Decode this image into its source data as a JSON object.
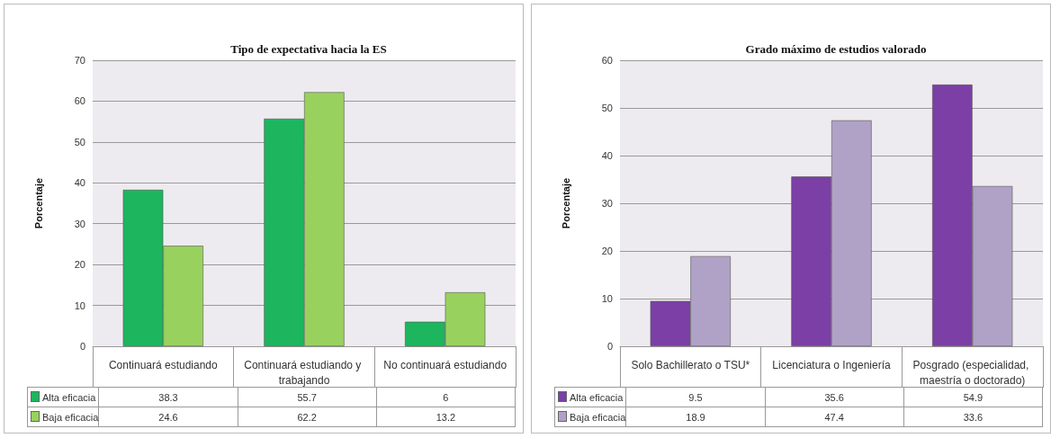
{
  "chart_data": [
    {
      "type": "bar",
      "title": "Tipo de expectativa hacia la ES",
      "ylabel": "Porcentaje",
      "categories": [
        "Continuará estudiando",
        "Continuará estudiando y trabajando",
        "No continuará estudiando"
      ],
      "series": [
        {
          "name": "Alta eficacia",
          "color": "#1db55e",
          "values": [
            38.3,
            55.7,
            6
          ]
        },
        {
          "name": "Baja eficacia",
          "color": "#99d15e",
          "values": [
            24.6,
            62.2,
            13.2
          ]
        }
      ],
      "ylim": [
        0,
        70
      ],
      "yticks": [
        0,
        10,
        20,
        30,
        40,
        50,
        60,
        70
      ],
      "grid": "y",
      "legend": "bottom left",
      "data_labels": true
    },
    {
      "type": "bar",
      "title": "Grado máximo de estudios valorado",
      "ylabel": "Porcentaje",
      "categories": [
        "Solo Bachillerato o TSU*",
        "Licenciatura o Ingeniería",
        "Posgrado (especialidad, maestría o doctorado)"
      ],
      "series": [
        {
          "name": "Alta eficacia",
          "color": "#7b3fa6",
          "values": [
            9.5,
            35.6,
            54.9
          ]
        },
        {
          "name": "Baja eficacia",
          "color": "#b0a2c6",
          "values": [
            18.9,
            47.4,
            33.6
          ]
        }
      ],
      "ylim": [
        0,
        60
      ],
      "yticks": [
        0,
        10,
        20,
        30,
        40,
        50,
        60
      ],
      "grid": "y",
      "legend": "bottom left",
      "data_labels": true
    }
  ]
}
